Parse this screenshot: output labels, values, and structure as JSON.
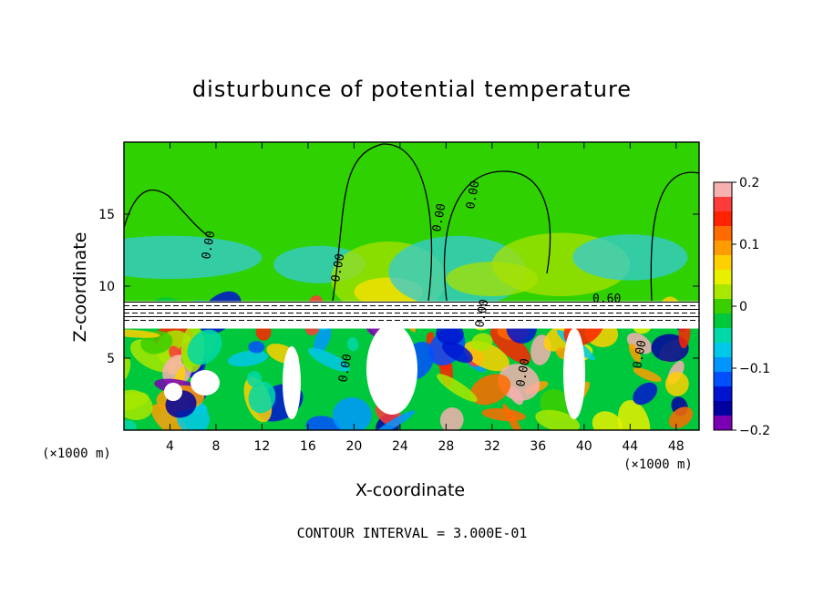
{
  "chart_data": {
    "type": "heatmap",
    "title": "disturbunce of potential temperature",
    "xlabel": "X-coordinate",
    "ylabel": "Z-coordinate",
    "x_unit_label": "(×1000 m)",
    "note": "CONTOUR INTERVAL = 3.000E-01",
    "xlim": [
      0,
      50
    ],
    "ylim": [
      0,
      20
    ],
    "x_ticks": [
      "4",
      "8",
      "12",
      "16",
      "20",
      "24",
      "28",
      "32",
      "36",
      "40",
      "44",
      "48"
    ],
    "y_ticks": [
      "5",
      "10",
      "15"
    ],
    "colorbar": {
      "range": [
        -0.2,
        0.2
      ],
      "tick_labels": [
        "0.2",
        "0.1",
        "0",
        "−0.1",
        "−0.2"
      ],
      "colors": [
        "#f6b0b0",
        "#ff3a3a",
        "#ff2200",
        "#ff6a00",
        "#ff9d00",
        "#ffd000",
        "#e8f000",
        "#a8e800",
        "#3ccf00",
        "#00c83c",
        "#00d8a8",
        "#00c8e8",
        "#0096ff",
        "#0050ff",
        "#0014d0",
        "#0000a0",
        "#7a00b4"
      ]
    },
    "contour_labels": [
      "0.00",
      "0.00",
      "0.00",
      "0.00",
      "0.00",
      "0.00",
      "0.00",
      "0.00",
      "0.60"
    ],
    "regions": {
      "upper_background": "#2fd200",
      "upper_anomaly_colors": [
        "#36c9d9",
        "#a8e100",
        "#ffe000"
      ],
      "interface_height": 8.7
    }
  }
}
